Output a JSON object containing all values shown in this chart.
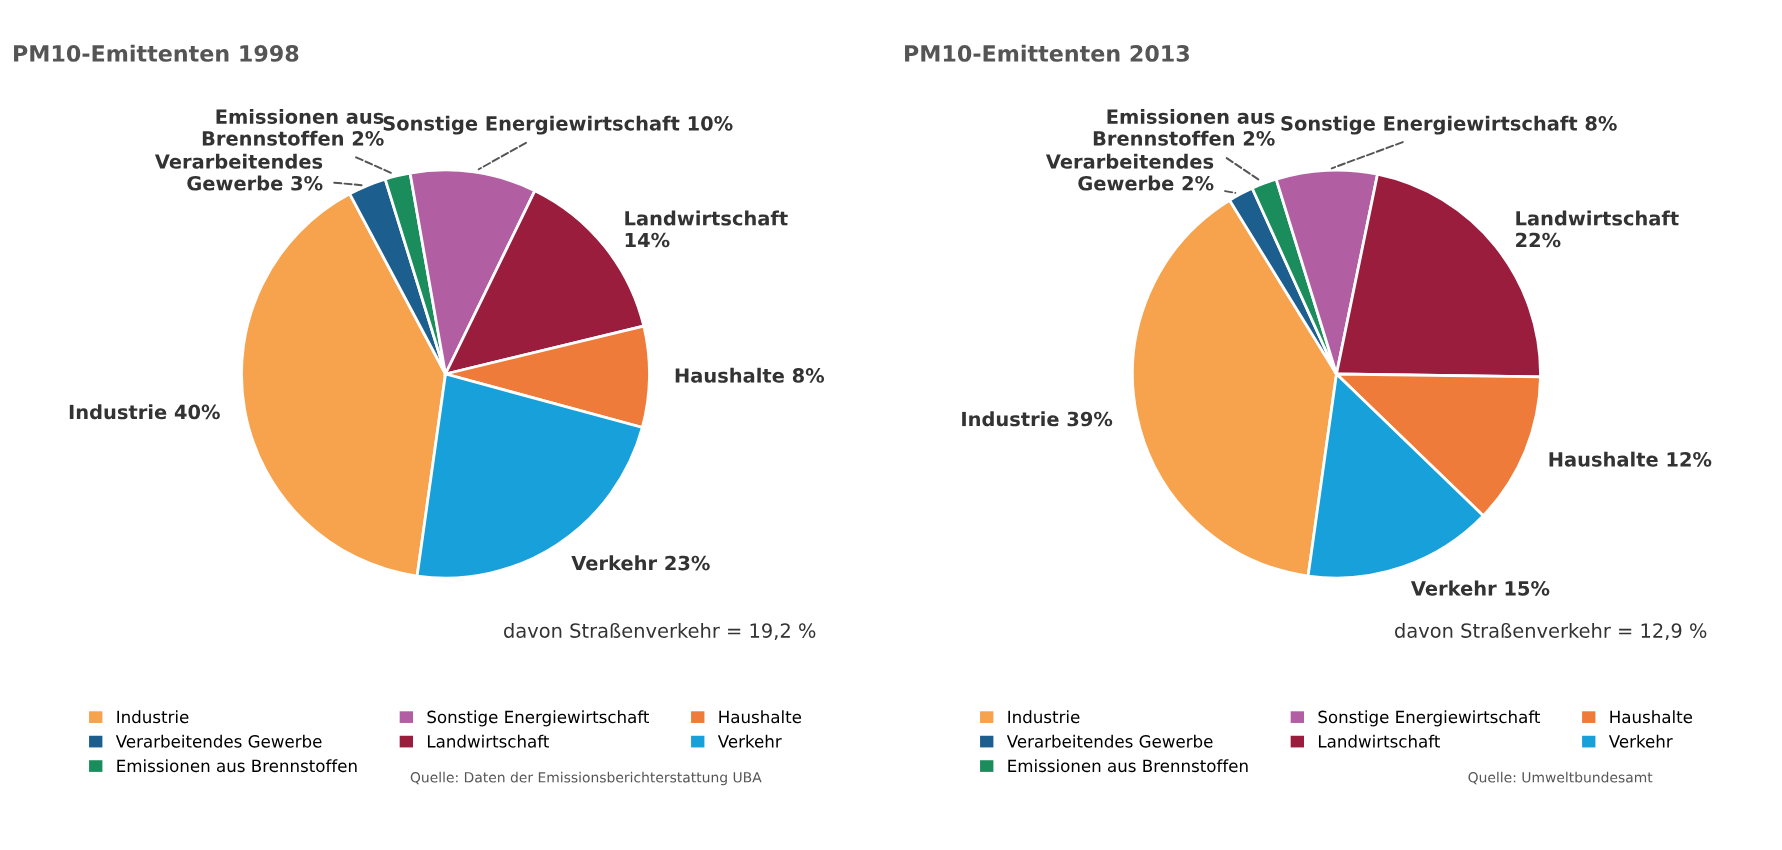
{
  "chart_data": [
    {
      "type": "pie",
      "title": "PM10-Emittenten 1998",
      "categories": [
        "Industrie",
        "Verarbeitendes Gewerbe",
        "Emissionen aus Brennstoffen",
        "Sonstige Energiewirtschaft",
        "Landwirtschaft",
        "Haushalte",
        "Verkehr"
      ],
      "values": [
        40,
        3,
        2,
        10,
        14,
        8,
        23
      ],
      "colors": [
        "#f7a24c",
        "#1c5f8e",
        "#1b8c5c",
        "#b25ea2",
        "#9a1d3e",
        "#ef7b3a",
        "#17a0da"
      ],
      "value_labels": [
        "Industrie 40%",
        "Verarbeitendes\nGewerbe 3%",
        "Emissionen aus\nBrennstoffen 2%",
        "Sonstige Energiewirtschaft 10%",
        "Landwirtschaft\n14%",
        "Haushalte 8%",
        "Verkehr 23%"
      ],
      "legend": "bottom",
      "annotations": [
        "davon Straßenverkehr = 19,2 %",
        "Quelle: Daten der Emissionsberichterstattung UBA"
      ]
    },
    {
      "type": "pie",
      "title": "PM10-Emittenten 2013",
      "categories": [
        "Industrie",
        "Verarbeitendes Gewerbe",
        "Emissionen aus Brennstoffen",
        "Sonstige Energiewirtschaft",
        "Landwirtschaft",
        "Haushalte",
        "Verkehr"
      ],
      "values": [
        39,
        2,
        2,
        8,
        22,
        12,
        15
      ],
      "colors": [
        "#f7a24c",
        "#1c5f8e",
        "#1b8c5c",
        "#b25ea2",
        "#9a1d3e",
        "#ef7b3a",
        "#17a0da"
      ],
      "value_labels": [
        "Industrie 39%",
        "Verarbeitendes\nGewerbe 2%",
        "Emissionen aus\nBrennstoffen 2%",
        "Sonstige Energiewirtschaft 8%",
        "Landwirtschaft\n22%",
        "Haushalte 12%",
        "Verkehr 15%"
      ],
      "legend": "bottom",
      "annotations": [
        "davon Straßenverkehr = 12,9 %",
        "Quelle: Umweltbundesamt"
      ]
    }
  ]
}
